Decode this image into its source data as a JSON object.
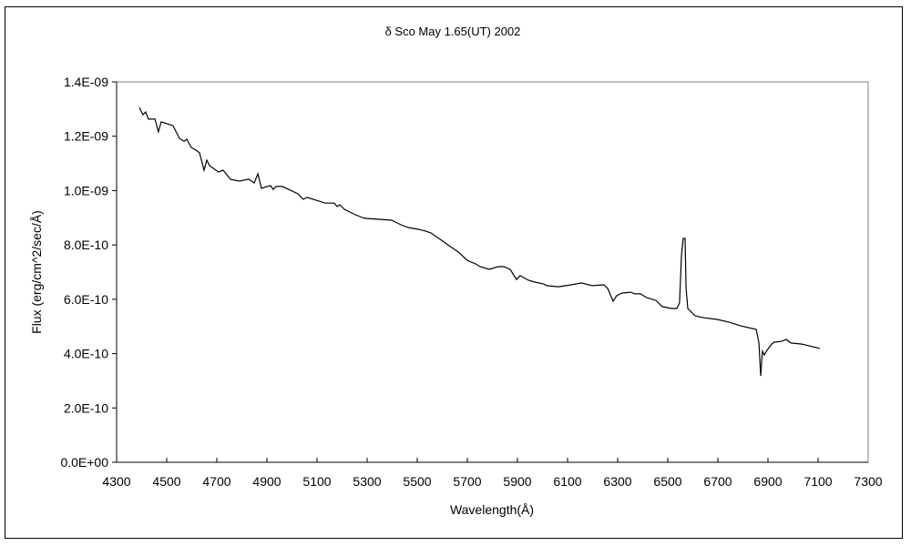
{
  "chart_data": {
    "type": "line",
    "title": "δ Sco  May 1.65(UT) 2002",
    "xlabel": "Wavelength(Å)",
    "ylabel": "Flux (erg/cm^2/sec/Å)",
    "xlim": [
      4300,
      7300
    ],
    "ylim": [
      0,
      1.4e-09
    ],
    "xticks": [
      "4300",
      "4500",
      "4700",
      "4900",
      "5100",
      "5300",
      "5500",
      "5700",
      "5900",
      "6100",
      "6300",
      "6500",
      "6700",
      "6900",
      "7100",
      "7300"
    ],
    "yticks": [
      "0.0E+00",
      "2.0E-10",
      "4.0E-10",
      "6.0E-10",
      "8.0E-10",
      "1.0E-09",
      "1.2E-09",
      "1.4E-09"
    ],
    "grid": false,
    "legend": "none",
    "line_color": "#000000",
    "series": [
      {
        "x": [
          4391,
          4405,
          4416,
          4427,
          4453,
          4467,
          4478,
          4525,
          4551,
          4569,
          4580,
          4598,
          4616,
          4631,
          4649,
          4660,
          4671,
          4707,
          4725,
          4755,
          4791,
          4827,
          4849,
          4864,
          4878,
          4900,
          4915,
          4925,
          4936,
          4962,
          4987,
          5024,
          5045,
          5060,
          5133,
          5169,
          5180,
          5191,
          5209,
          5253,
          5289,
          5398,
          5435,
          5464,
          5507,
          5533,
          5555,
          5591,
          5627,
          5664,
          5700,
          5733,
          5751,
          5787,
          5824,
          5845,
          5871,
          5896,
          5911,
          5944,
          5969,
          6005,
          6016,
          6064,
          6115,
          6155,
          6198,
          6245,
          6260,
          6282,
          6296,
          6318,
          6351,
          6369,
          6391,
          6416,
          6453,
          6478,
          6515,
          6536,
          6547,
          6555,
          6562,
          6569,
          6573,
          6580,
          6609,
          6645,
          6696,
          6744,
          6791,
          6853,
          6864,
          6871,
          6878,
          6885,
          6896,
          6915,
          6925,
          6955,
          6973,
          6991,
          7035,
          7107
        ],
        "y": [
          1.306e-09,
          1.279e-09,
          1.289e-09,
          1.263e-09,
          1.263e-09,
          1.216e-09,
          1.253e-09,
          1.239e-09,
          1.192e-09,
          1.182e-09,
          1.189e-09,
          1.159e-09,
          1.149e-09,
          1.139e-09,
          1.075e-09,
          1.112e-09,
          1.092e-09,
          1.068e-09,
          1.075e-09,
          1.041e-09,
          1.035e-09,
          1.042e-09,
          1.028e-09,
          1.062e-09,
          1.008e-09,
          1.015e-09,
          1.018e-09,
          1.004e-09,
          1.015e-09,
          1.015e-09,
          1.004e-09,
          9.88e-10,
          9.68e-10,
          9.75e-10,
          9.54e-10,
          9.54e-10,
          9.41e-10,
          9.48e-10,
          9.31e-10,
          9.11e-10,
          8.98e-10,
          8.91e-10,
          8.74e-10,
          8.64e-10,
          8.57e-10,
          8.51e-10,
          8.44e-10,
          8.21e-10,
          7.97e-10,
          7.74e-10,
          7.43e-10,
          7.3e-10,
          7.2e-10,
          7.1e-10,
          7.2e-10,
          7.2e-10,
          7.1e-10,
          6.73e-10,
          6.87e-10,
          6.7e-10,
          6.63e-10,
          6.56e-10,
          6.5e-10,
          6.46e-10,
          6.53e-10,
          6.6e-10,
          6.5e-10,
          6.53e-10,
          6.4e-10,
          5.93e-10,
          6.13e-10,
          6.23e-10,
          6.26e-10,
          6.2e-10,
          6.2e-10,
          6.06e-10,
          5.96e-10,
          5.73e-10,
          5.66e-10,
          5.66e-10,
          5.86e-10,
          7.64e-10,
          8.24e-10,
          8.24e-10,
          6.4e-10,
          5.66e-10,
          5.39e-10,
          5.32e-10,
          5.26e-10,
          5.16e-10,
          5.02e-10,
          4.89e-10,
          4.39e-10,
          3.18e-10,
          4.09e-10,
          3.95e-10,
          4.12e-10,
          4.35e-10,
          4.42e-10,
          4.45e-10,
          4.52e-10,
          4.39e-10,
          4.35e-10,
          4.19e-10
        ]
      }
    ]
  }
}
